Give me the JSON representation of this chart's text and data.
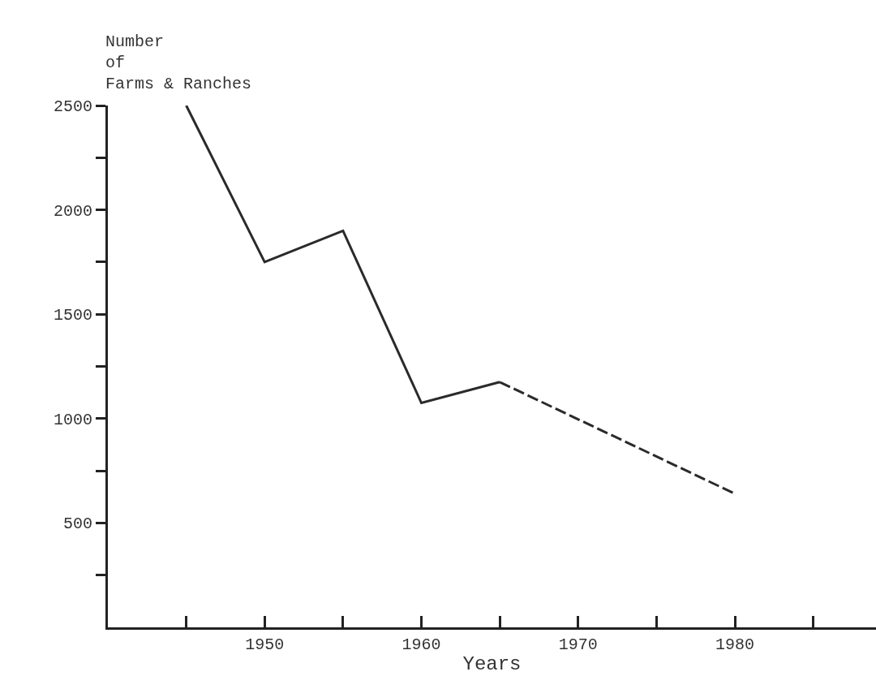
{
  "chart_data": {
    "type": "line",
    "xlabel": "Years",
    "ylabel": "Number\nof\nFarms & Ranches",
    "series": [
      {
        "color": "#2a2a2a",
        "line_style": "solid",
        "x": [
          1945,
          1950,
          1955,
          1960,
          1965
        ],
        "values": [
          2500,
          1750,
          1900,
          1075,
          1175
        ]
      },
      {
        "color": "#2a2a2a",
        "line_style": "dashed",
        "x": [
          1965,
          1980
        ],
        "values": [
          1175,
          640
        ]
      }
    ],
    "xlim": [
      1940,
      1989
    ],
    "ylim": [
      0,
      2500
    ],
    "xticks": [
      {
        "value": 1945,
        "label": null
      },
      1950,
      {
        "value": 1955,
        "label": null
      },
      1960,
      {
        "value": 1965,
        "label": null
      },
      1970,
      {
        "value": 1975,
        "label": null
      },
      1980,
      {
        "value": 1985,
        "label": null
      }
    ],
    "yticks": [
      {
        "value": 250,
        "label": null
      },
      500,
      {
        "value": 750,
        "label": null
      },
      1000,
      {
        "value": 1250,
        "label": null
      },
      1500,
      {
        "value": 1750,
        "label": null
      },
      2000,
      {
        "value": 2250,
        "label": null
      },
      2500
    ],
    "grid": false,
    "marker": "none"
  }
}
